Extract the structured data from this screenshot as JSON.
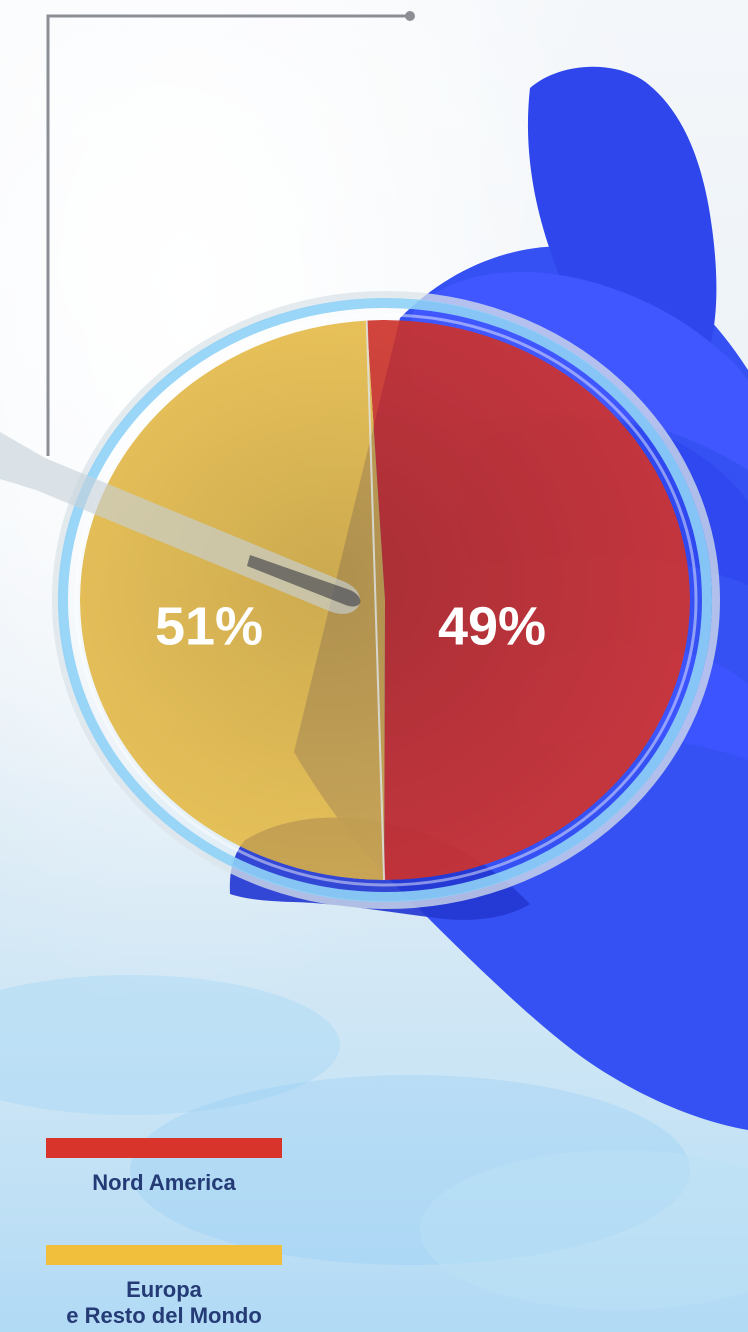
{
  "chart_data": {
    "type": "pie",
    "values": [
      51,
      49
    ],
    "data_labels": [
      "51%",
      "49%"
    ],
    "series": [
      {
        "name": "Nord America",
        "value": 51,
        "color": "#d8342b"
      },
      {
        "name": "Europa\ne Resto del Mondo",
        "value": 49,
        "color": "#f1bf3b"
      }
    ],
    "legend_placement": "bottom-left"
  },
  "colors": {
    "legend_text": "#243b76",
    "glove": "#3550f3",
    "dish_ring": "#8fd1f6",
    "connector": "#8b8f95"
  },
  "icons": {
    "glove": "gloved-hand-icon",
    "pipette": "pipette-icon",
    "dish": "petri-dish-icon"
  }
}
